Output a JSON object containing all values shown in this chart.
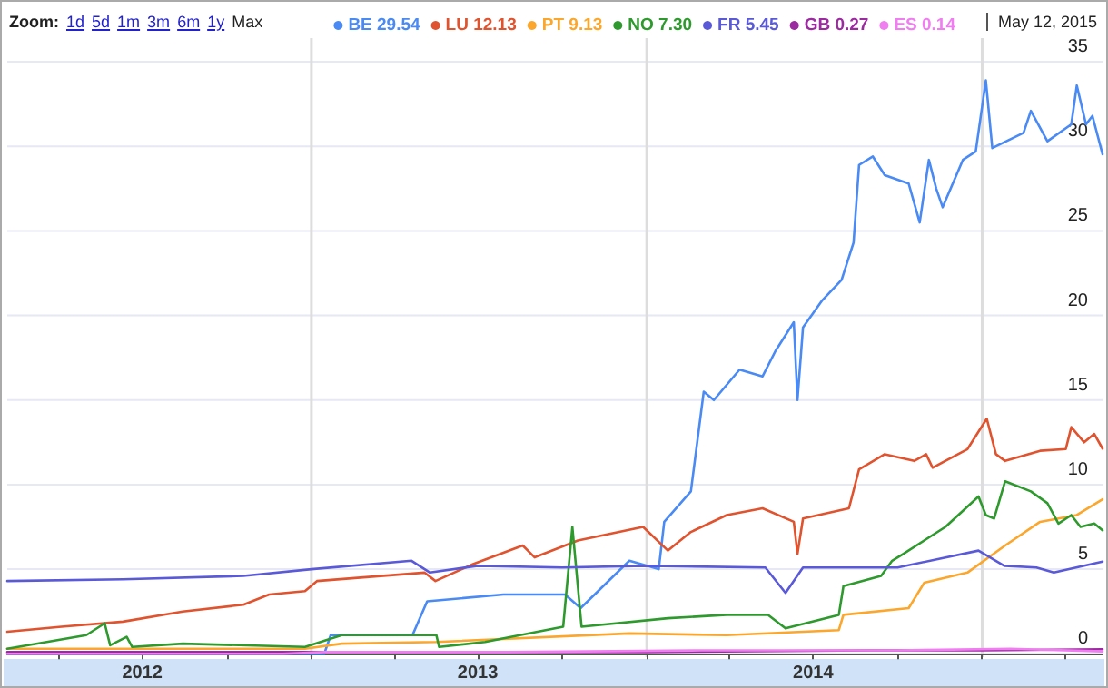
{
  "chart_data": {
    "type": "line",
    "annotations": [
      "Zoom:",
      "1d",
      "5d",
      "1m",
      "3m",
      "6m",
      "1y",
      "Max",
      "May 12, 2015"
    ],
    "xlim": [
      "2012-02-05",
      "2015-05-12"
    ],
    "xticks": [
      {
        "value": "2012-04-01",
        "label": null
      },
      {
        "value": "2012-07-01",
        "label": "2012"
      },
      {
        "value": "2012-10-01",
        "label": null
      },
      {
        "value": "2013-01-01",
        "label": null
      },
      {
        "value": "2013-04-01",
        "label": null
      },
      {
        "value": "2013-07-01",
        "label": "2013"
      },
      {
        "value": "2013-10-01",
        "label": null
      },
      {
        "value": "2014-01-01",
        "label": null
      },
      {
        "value": "2014-04-01",
        "label": null
      },
      {
        "value": "2014-07-01",
        "label": "2014"
      },
      {
        "value": "2014-10-01",
        "label": null
      },
      {
        "value": "2015-01-01",
        "label": null
      },
      {
        "value": "2015-04-01",
        "label": null
      }
    ],
    "ylim": [
      -0.2,
      36.4
    ],
    "yticks": [
      0,
      5,
      10,
      15,
      20,
      25,
      30,
      35
    ],
    "grid": true,
    "legend": "top right",
    "marker": "none",
    "line_style": "solid",
    "series": [
      {
        "name": "BE 29.54",
        "color": "#4a8af4",
        "x": [
          "2012-02-05",
          "2013-01-15",
          "2013-01-22",
          "2013-04-21",
          "2013-05-07",
          "2013-07-29",
          "2013-10-04",
          "2013-10-21",
          "2013-12-13",
          "2014-01-14",
          "2014-01-20",
          "2014-02-18",
          "2014-03-04",
          "2014-03-15",
          "2014-04-12",
          "2014-05-07",
          "2014-05-21",
          "2014-06-10",
          "2014-06-14",
          "2014-06-20",
          "2014-07-11",
          "2014-08-01",
          "2014-08-14",
          "2014-08-20",
          "2014-09-04",
          "2014-09-17",
          "2014-10-13",
          "2014-10-25",
          "2014-11-04",
          "2014-11-12",
          "2014-11-19",
          "2014-12-11",
          "2014-12-25",
          "2015-01-05",
          "2015-01-12",
          "2015-02-15",
          "2015-02-23",
          "2015-03-13",
          "2015-04-08",
          "2015-04-14",
          "2015-04-24",
          "2015-05-01",
          "2015-05-12"
        ],
        "values": [
          0,
          0,
          1.1,
          1.1,
          3.1,
          3.5,
          3.5,
          2.7,
          5.5,
          5,
          7.8,
          9.6,
          15.5,
          15,
          16.8,
          16.4,
          17.9,
          19.6,
          15,
          19.3,
          20.9,
          22.1,
          24.3,
          28.9,
          29.4,
          28.3,
          27.8,
          25.5,
          29.2,
          27.5,
          26.4,
          29.2,
          29.7,
          33.9,
          29.9,
          30.8,
          32.1,
          30.3,
          31.3,
          33.6,
          31.3,
          31.8,
          29.54
        ]
      },
      {
        "name": "LU 12.13",
        "color": "#e0532f",
        "x": [
          "2012-02-05",
          "2012-04-04",
          "2012-06-10",
          "2012-08-14",
          "2012-10-19",
          "2012-11-16",
          "2012-12-25",
          "2013-01-07",
          "2013-05-04",
          "2013-05-16",
          "2013-06-26",
          "2013-08-19",
          "2013-09-01",
          "2013-10-18",
          "2013-12-28",
          "2014-01-24",
          "2014-02-18",
          "2014-03-29",
          "2014-05-07",
          "2014-06-10",
          "2014-06-14",
          "2014-06-20",
          "2014-08-09",
          "2014-08-20",
          "2014-09-17",
          "2014-10-19",
          "2014-11-01",
          "2014-11-08",
          "2014-12-16",
          "2015-01-06",
          "2015-01-16",
          "2015-01-26",
          "2015-03-05",
          "2015-04-02",
          "2015-04-08",
          "2015-04-22",
          "2015-05-03",
          "2015-05-12"
        ],
        "values": [
          1.3,
          1.6,
          1.9,
          2.5,
          2.9,
          3.5,
          3.7,
          4.3,
          4.8,
          4.3,
          5.3,
          6.4,
          5.7,
          6.7,
          7.5,
          6.1,
          7.2,
          8.2,
          8.6,
          7.8,
          5.9,
          8,
          8.6,
          10.9,
          11.8,
          11.4,
          11.8,
          11,
          12.1,
          13.9,
          11.8,
          11.4,
          12,
          12.1,
          13.4,
          12.5,
          13,
          12.13
        ]
      },
      {
        "name": "PT 9.13",
        "color": "#fba62c",
        "x": [
          "2012-02-05",
          "2012-12-25",
          "2013-02-03",
          "2013-05-17",
          "2013-12-13",
          "2014-03-29",
          "2014-07-29",
          "2014-08-03",
          "2014-10-13",
          "2014-10-30",
          "2014-12-16",
          "2015-01-26",
          "2015-03-05",
          "2015-04-14",
          "2015-05-12"
        ],
        "values": [
          0.3,
          0.3,
          0.6,
          0.7,
          1.2,
          1.1,
          1.4,
          2.3,
          2.7,
          4.2,
          4.8,
          6.4,
          7.8,
          8.2,
          9.13
        ]
      },
      {
        "name": "NO 7.30",
        "color": "#2e9a2e",
        "x": [
          "2012-02-05",
          "2012-05-01",
          "2012-05-21",
          "2012-05-27",
          "2012-06-14",
          "2012-06-20",
          "2012-08-14",
          "2012-12-25",
          "2013-02-03",
          "2013-05-17",
          "2013-05-20",
          "2013-07-09",
          "2013-10-02",
          "2013-10-12",
          "2013-10-22",
          "2014-01-24",
          "2014-03-29",
          "2014-05-13",
          "2014-06-01",
          "2014-07-29",
          "2014-08-03",
          "2014-09-13",
          "2014-09-25",
          "2014-10-07",
          "2014-11-22",
          "2014-12-28",
          "2015-01-05",
          "2015-01-14",
          "2015-01-26",
          "2015-02-23",
          "2015-03-13",
          "2015-03-25",
          "2015-04-08",
          "2015-04-18",
          "2015-05-03",
          "2015-05-12"
        ],
        "values": [
          0.3,
          1.1,
          1.8,
          0.5,
          1,
          0.4,
          0.6,
          0.4,
          1.1,
          1.1,
          0.4,
          0.7,
          1.6,
          7.5,
          1.6,
          2.1,
          2.3,
          2.3,
          1.5,
          2.3,
          4,
          4.6,
          5.5,
          5.9,
          7.5,
          9.3,
          8.2,
          8,
          10.2,
          9.6,
          8.9,
          7.7,
          8.2,
          7.5,
          7.7,
          7.3
        ]
      },
      {
        "name": "FR 5.45",
        "color": "#5a5ad8",
        "x": [
          "2012-02-05",
          "2012-06-10",
          "2012-10-19",
          "2013-01-01",
          "2013-04-20",
          "2013-05-10",
          "2013-07-01",
          "2013-10-01",
          "2014-01-01",
          "2014-05-10",
          "2014-06-01",
          "2014-06-20",
          "2014-10-01",
          "2014-12-28",
          "2015-01-25",
          "2015-03-01",
          "2015-03-20",
          "2015-05-12"
        ],
        "values": [
          4.3,
          4.4,
          4.6,
          5,
          5.5,
          4.8,
          5.2,
          5.1,
          5.2,
          5.1,
          3.6,
          5.1,
          5.1,
          6.1,
          5.2,
          5.1,
          4.8,
          5.45
        ]
      },
      {
        "name": "GB 0.27",
        "color": "#9c2aa0",
        "x": [
          "2012-02-05",
          "2012-12-01",
          "2013-06-01",
          "2014-01-01",
          "2014-09-01",
          "2015-01-01",
          "2015-05-12"
        ],
        "values": [
          0.1,
          0.1,
          0.1,
          0.1,
          0.2,
          0.2,
          0.27
        ]
      },
      {
        "name": "ES 0.14",
        "color": "#f07ef0",
        "x": [
          "2012-02-05",
          "2012-12-01",
          "2013-01-15",
          "2013-08-01",
          "2014-03-01",
          "2014-10-01",
          "2015-02-01",
          "2015-05-12"
        ],
        "values": [
          0,
          0,
          0.1,
          0.1,
          0.2,
          0.2,
          0.3,
          0.14
        ]
      }
    ]
  }
}
